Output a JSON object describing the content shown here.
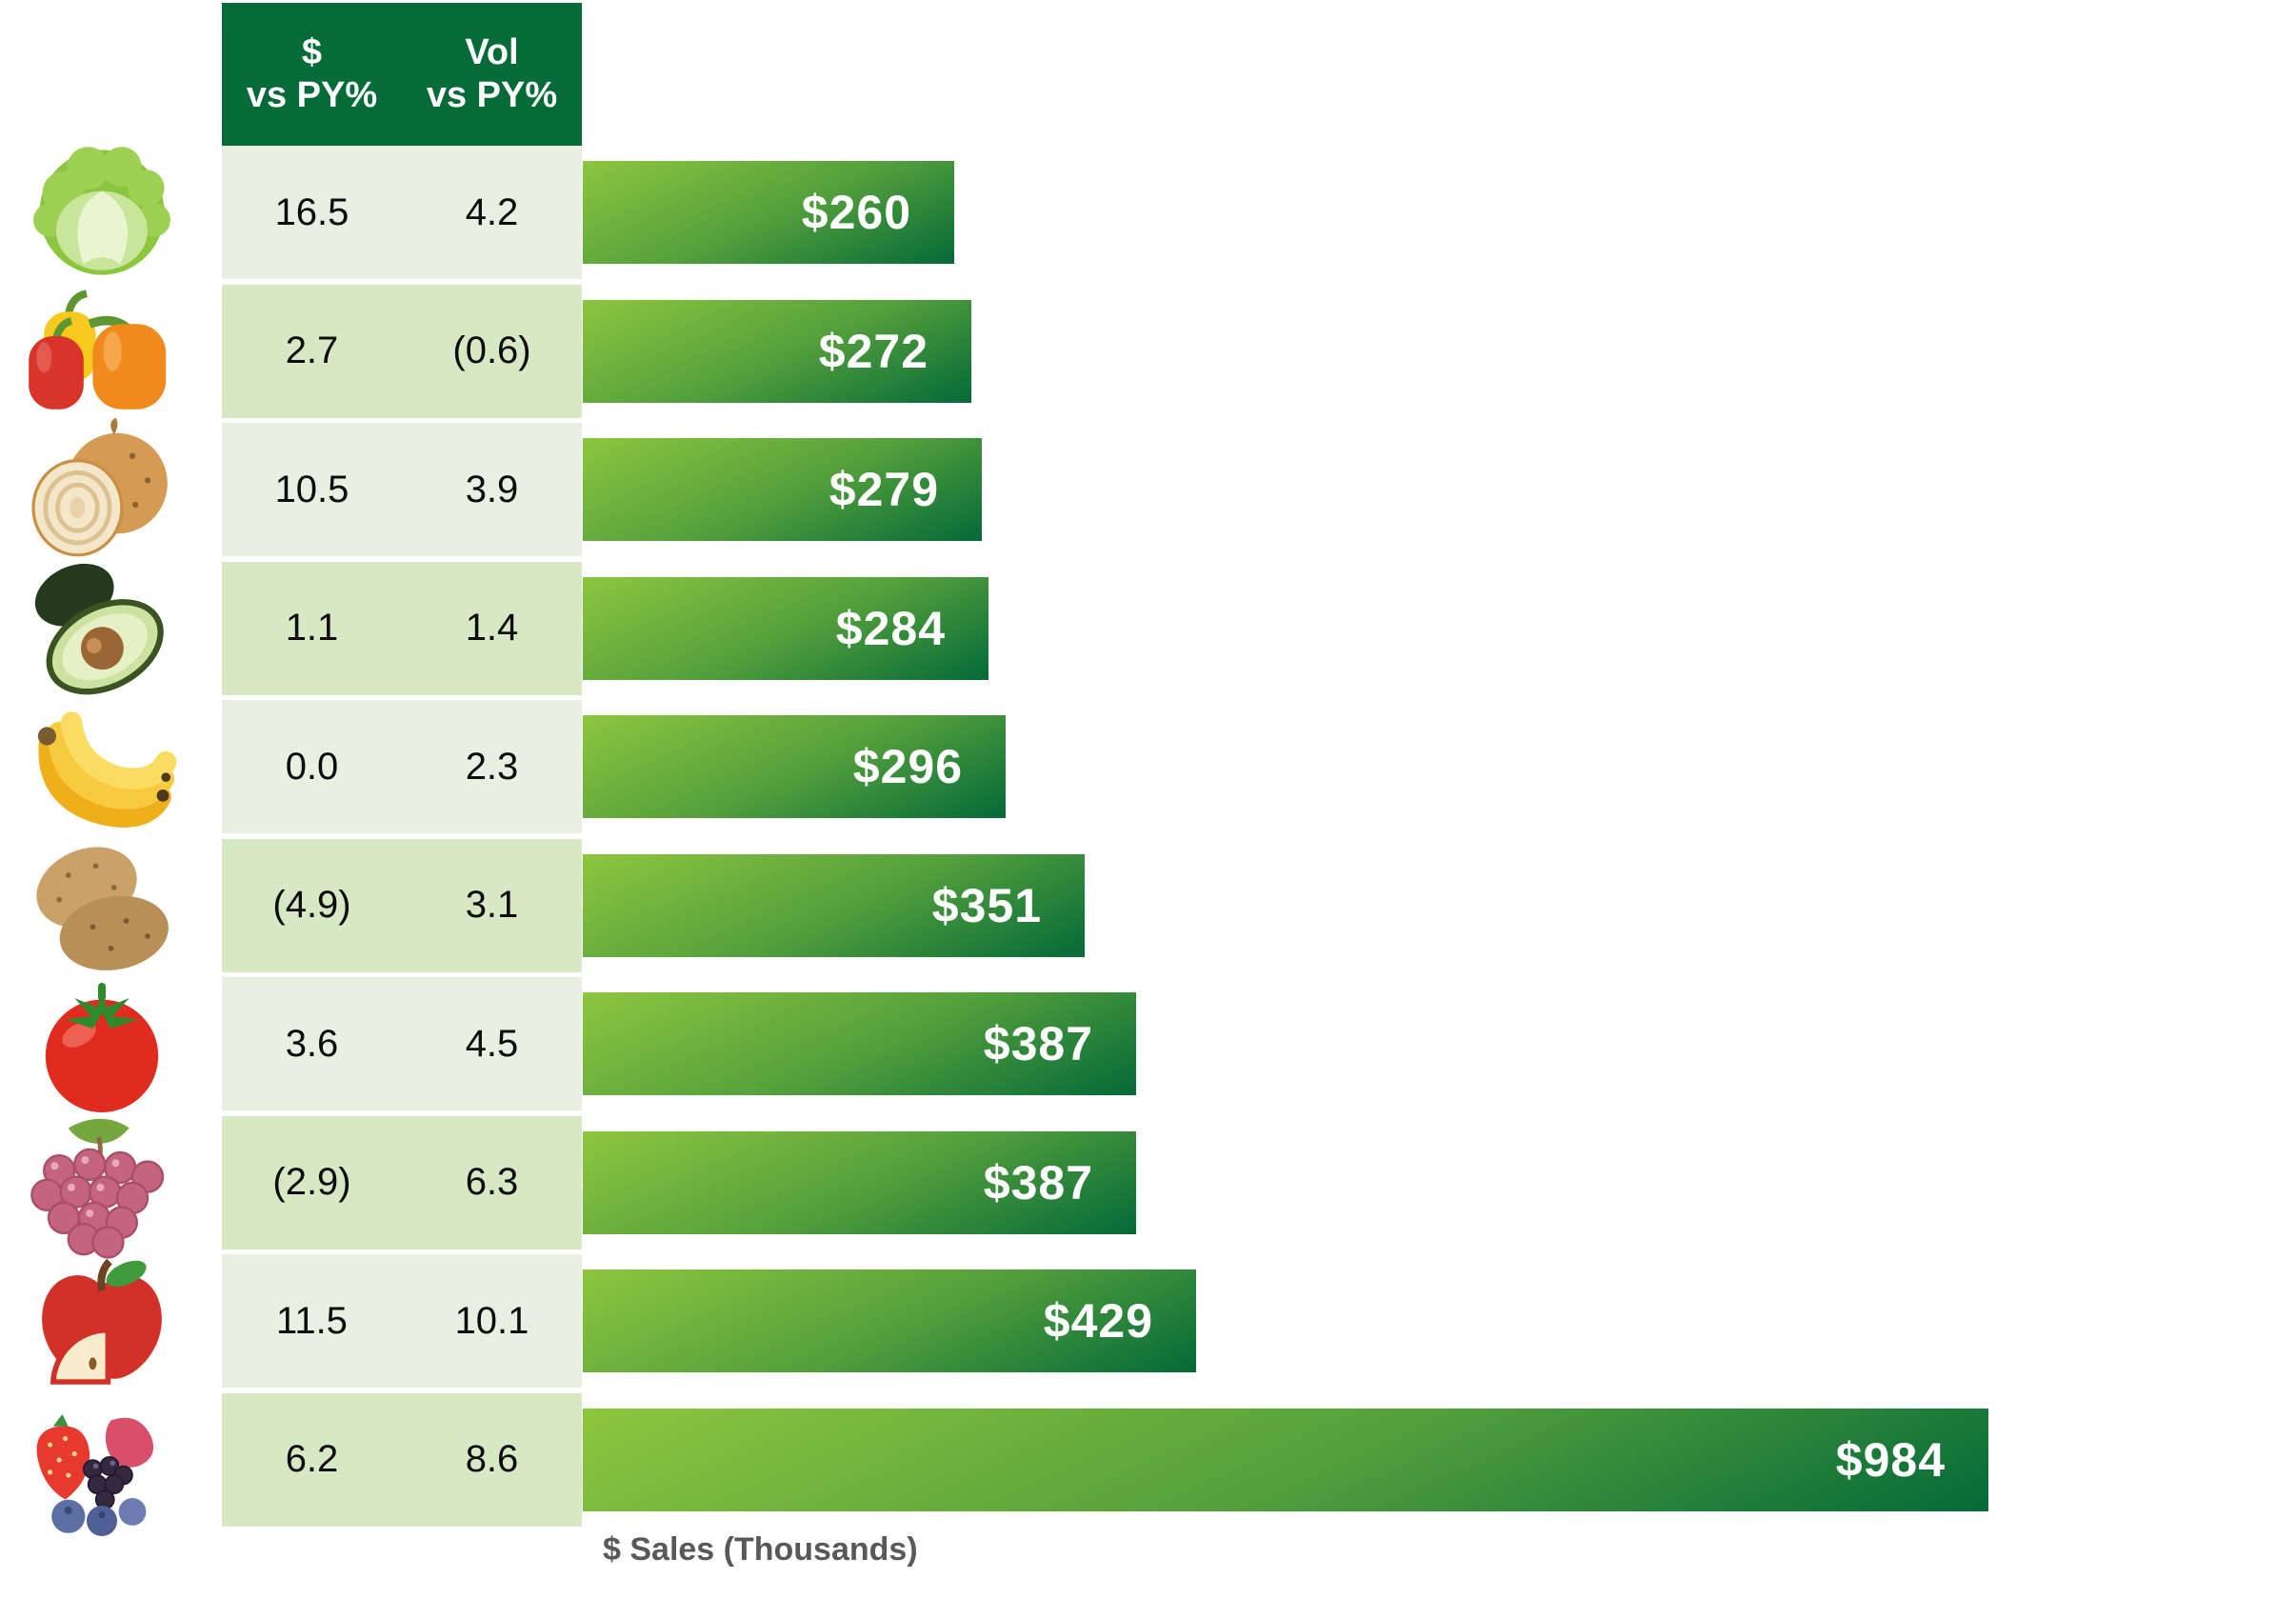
{
  "header": {
    "col1": "$\nvs PY%",
    "col2": "Vol\nvs PY%"
  },
  "axis": {
    "label": "$ Sales (Thousands)"
  },
  "colors": {
    "header_bg": "#046B39",
    "row_stripe_light": "#E9F0E1",
    "row_stripe_dark": "#D7E8C4",
    "bar_gradient_start": "#8DC63F",
    "bar_gradient_end": "#046A38",
    "bar_label_text": "#FFFFFF",
    "table_text": "#0C0C0C",
    "axis_label_text": "#58595B"
  },
  "rows": [
    {
      "item": "Lettuce",
      "icon": "lettuce-icon",
      "dollar_vs_py": "16.5",
      "vol_vs_py": "4.2",
      "sales": 260,
      "sales_label": "$260"
    },
    {
      "item": "Bell Peppers",
      "icon": "bell-peppers-icon",
      "dollar_vs_py": "2.7",
      "vol_vs_py": "(0.6)",
      "sales": 272,
      "sales_label": "$272"
    },
    {
      "item": "Onions",
      "icon": "onion-icon",
      "dollar_vs_py": "10.5",
      "vol_vs_py": "3.9",
      "sales": 279,
      "sales_label": "$279"
    },
    {
      "item": "Avocados",
      "icon": "avocado-icon",
      "dollar_vs_py": "1.1",
      "vol_vs_py": "1.4",
      "sales": 284,
      "sales_label": "$284"
    },
    {
      "item": "Bananas",
      "icon": "bananas-icon",
      "dollar_vs_py": "0.0",
      "vol_vs_py": "2.3",
      "sales": 296,
      "sales_label": "$296"
    },
    {
      "item": "Potatoes",
      "icon": "potatoes-icon",
      "dollar_vs_py": "(4.9)",
      "vol_vs_py": "3.1",
      "sales": 351,
      "sales_label": "$351"
    },
    {
      "item": "Tomatoes",
      "icon": "tomato-icon",
      "dollar_vs_py": "3.6",
      "vol_vs_py": "4.5",
      "sales": 387,
      "sales_label": "$387"
    },
    {
      "item": "Grapes",
      "icon": "grapes-icon",
      "dollar_vs_py": "(2.9)",
      "vol_vs_py": "6.3",
      "sales": 387,
      "sales_label": "$387"
    },
    {
      "item": "Apples",
      "icon": "apple-icon",
      "dollar_vs_py": "11.5",
      "vol_vs_py": "10.1",
      "sales": 429,
      "sales_label": "$429"
    },
    {
      "item": "Berries",
      "icon": "berries-icon",
      "dollar_vs_py": "6.2",
      "vol_vs_py": "8.6",
      "sales": 984,
      "sales_label": "$984"
    }
  ],
  "chart_data": {
    "type": "bar",
    "orientation": "horizontal",
    "categories": [
      "Lettuce",
      "Bell Peppers",
      "Onions",
      "Avocados",
      "Bananas",
      "Potatoes",
      "Tomatoes",
      "Grapes",
      "Apples",
      "Berries"
    ],
    "series": [
      {
        "name": "$ vs PY%",
        "values": [
          16.5,
          2.7,
          10.5,
          1.1,
          0.0,
          -4.9,
          3.6,
          -2.9,
          11.5,
          6.2
        ]
      },
      {
        "name": "Vol vs PY%",
        "values": [
          4.2,
          -0.6,
          3.9,
          1.4,
          2.3,
          3.1,
          4.5,
          6.3,
          10.1,
          8.6
        ]
      },
      {
        "name": "$ Sales (Thousands)",
        "values": [
          260,
          272,
          279,
          284,
          296,
          351,
          387,
          387,
          429,
          984
        ]
      }
    ],
    "bar_labels": [
      "$260",
      "$272",
      "$279",
      "$284",
      "$296",
      "$351",
      "$387",
      "$387",
      "$429",
      "$984"
    ],
    "title": "",
    "xlabel": "$ Sales (Thousands)",
    "ylabel": "",
    "xlim": [
      0,
      1000
    ],
    "grid": false,
    "legend": "none",
    "note": "negative values shown in parentheses in table"
  }
}
